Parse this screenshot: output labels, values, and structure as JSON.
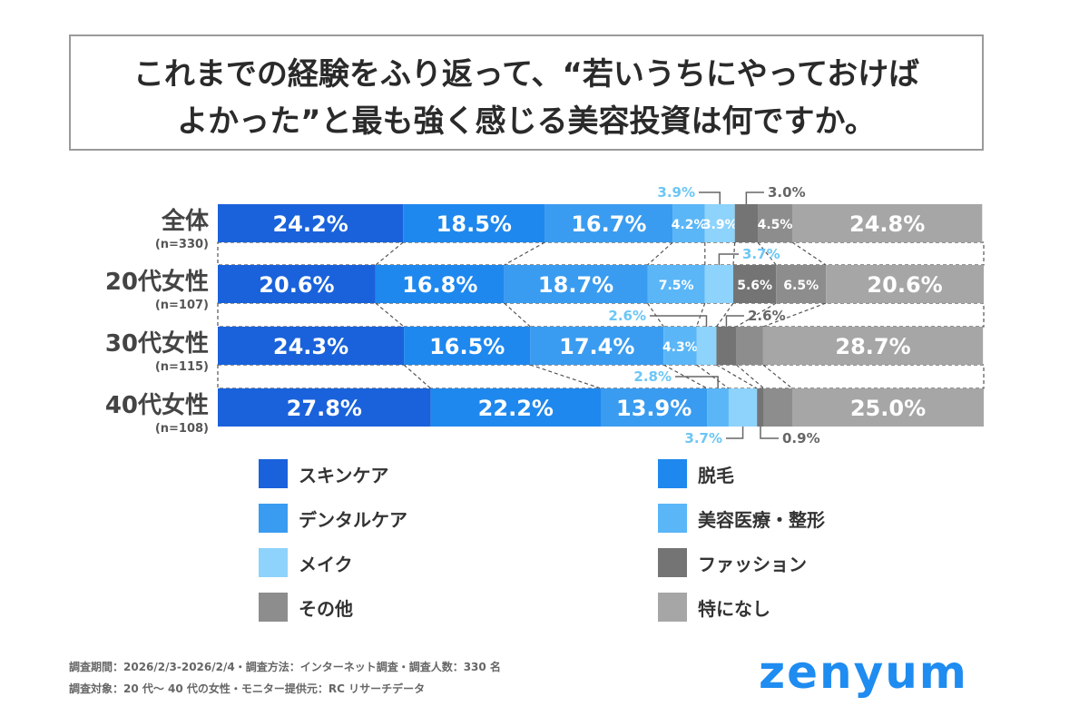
{
  "title": {
    "line1": "これまでの経験をふり返って、“若いうちにやっておけば",
    "line2": "よかった”と最も強く感じる美容投資は何ですか。"
  },
  "chart_data": {
    "type": "bar",
    "orientation": "horizontal",
    "stacked": "100%",
    "categories": [
      {
        "label": "全体",
        "n": "(n=330)"
      },
      {
        "label": "20代女性",
        "n": "(n=107)"
      },
      {
        "label": "30代女性",
        "n": "(n=115)"
      },
      {
        "label": "40代女性",
        "n": "(n=108)"
      }
    ],
    "series": [
      {
        "name": "スキンケア",
        "color": "#1a62db",
        "values": [
          24.2,
          20.6,
          24.3,
          27.8
        ]
      },
      {
        "name": "脱毛",
        "color": "#1e88ee",
        "values": [
          18.5,
          16.8,
          16.5,
          22.2
        ]
      },
      {
        "name": "デンタルケア",
        "color": "#3a9cf0",
        "values": [
          16.7,
          18.7,
          17.4,
          13.9
        ]
      },
      {
        "name": "美容医療・整形",
        "color": "#5ab6f7",
        "values": [
          4.2,
          7.5,
          4.3,
          2.8
        ]
      },
      {
        "name": "メイク",
        "color": "#8dd3fb",
        "values": [
          3.9,
          3.7,
          2.6,
          3.7
        ]
      },
      {
        "name": "ファッション",
        "color": "#747474",
        "values": [
          3.0,
          5.6,
          2.6,
          0.9
        ]
      },
      {
        "name": "その他",
        "color": "#8d8d8d",
        "values": [
          4.5,
          6.5,
          3.5,
          3.7
        ]
      },
      {
        "name": "特になし",
        "color": "#a6a6a6",
        "values": [
          24.8,
          20.6,
          28.7,
          25.0
        ]
      }
    ],
    "legend_position": "bottom",
    "value_format": "%.1f%"
  },
  "footer": {
    "line1": "調査期間：2026/2/3-2026/2/4・調査方法：インターネット調査・調査人数：330 名",
    "line2": "調査対象：20 代～ 40 代の女性・モニター提供元：RC リサーチデータ"
  },
  "logo": "zenyum"
}
